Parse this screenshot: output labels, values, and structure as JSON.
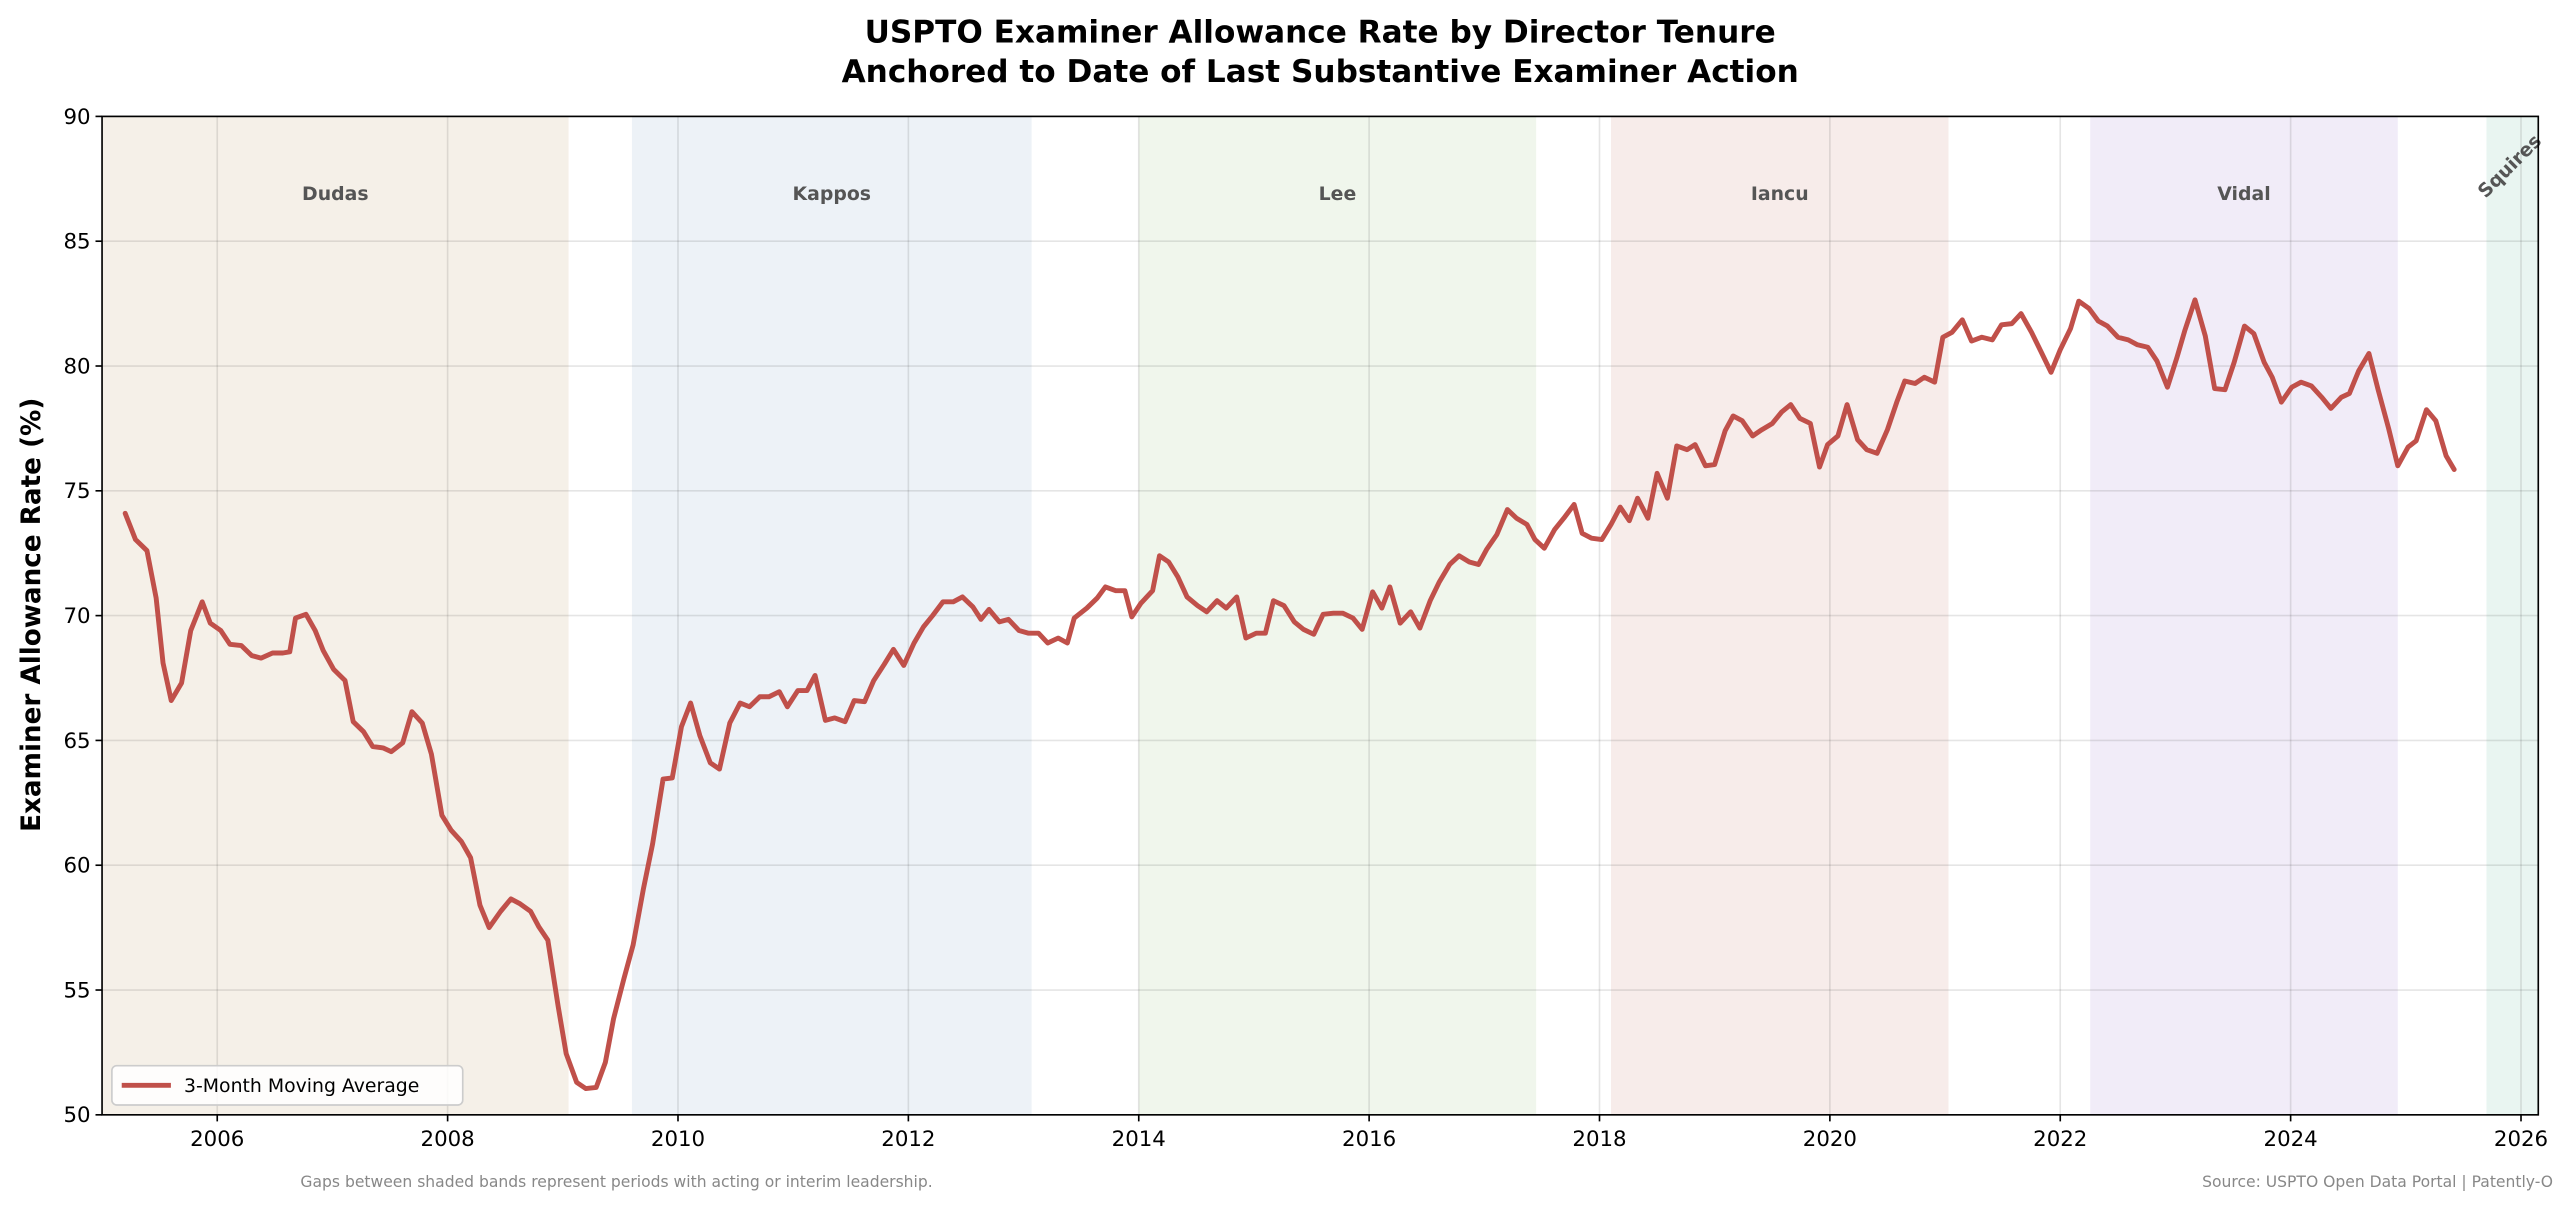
{
  "chart_data": {
    "type": "line",
    "title": "USPTO Examiner Allowance Rate by Director Tenure",
    "subtitle": "Anchored to Date of Last Substantive Examiner Action",
    "xlabel": "",
    "ylabel": "Examiner Allowance Rate (%)",
    "xlim": [
      2005.0,
      2026.15
    ],
    "ylim": [
      50,
      90
    ],
    "xticks": [
      2006,
      2008,
      2010,
      2012,
      2014,
      2016,
      2018,
      2020,
      2022,
      2024,
      2026
    ],
    "yticks": [
      50,
      55,
      60,
      65,
      70,
      75,
      80,
      85,
      90
    ],
    "grid": true,
    "legend_position": "bottom-left",
    "line_color": "#c0504a",
    "bands": [
      {
        "name": "Dudas",
        "start": 2005.0,
        "end": 2009.05,
        "color": "#f5f0e8"
      },
      {
        "name": "Kappos",
        "start": 2009.6,
        "end": 2013.07,
        "color": "#edf2f7"
      },
      {
        "name": "Lee",
        "start": 2014.0,
        "end": 2017.45,
        "color": "#f0f6ec"
      },
      {
        "name": "Iancu",
        "start": 2018.1,
        "end": 2021.03,
        "color": "#f7ecea"
      },
      {
        "name": "Vidal",
        "start": 2022.26,
        "end": 2024.93,
        "color": "#f1ecf8"
      },
      {
        "name": "Squires",
        "start": 2025.7,
        "end": 2026.15,
        "color": "#e9f5f1",
        "rotated": true
      }
    ],
    "series": [
      {
        "name": "3-Month Moving Average",
        "points": [
          [
            2005.2,
            74.1
          ],
          [
            2005.29,
            73.05
          ],
          [
            2005.39,
            72.6
          ],
          [
            2005.47,
            70.7
          ],
          [
            2005.53,
            68.1
          ],
          [
            2005.6,
            66.6
          ],
          [
            2005.69,
            67.3
          ],
          [
            2005.77,
            69.4
          ],
          [
            2005.87,
            70.55
          ],
          [
            2005.94,
            69.7
          ],
          [
            2006.03,
            69.4
          ],
          [
            2006.11,
            68.85
          ],
          [
            2006.21,
            68.8
          ],
          [
            2006.3,
            68.4
          ],
          [
            2006.38,
            68.3
          ],
          [
            2006.48,
            68.5
          ],
          [
            2006.57,
            68.5
          ],
          [
            2006.63,
            68.55
          ],
          [
            2006.68,
            69.9
          ],
          [
            2006.77,
            70.05
          ],
          [
            2006.85,
            69.4
          ],
          [
            2006.92,
            68.6
          ],
          [
            2007.01,
            67.85
          ],
          [
            2007.11,
            67.4
          ],
          [
            2007.18,
            65.75
          ],
          [
            2007.27,
            65.35
          ],
          [
            2007.35,
            64.75
          ],
          [
            2007.44,
            64.7
          ],
          [
            2007.51,
            64.55
          ],
          [
            2007.61,
            64.9
          ],
          [
            2007.69,
            66.15
          ],
          [
            2007.78,
            65.7
          ],
          [
            2007.86,
            64.45
          ],
          [
            2007.95,
            62.0
          ],
          [
            2008.03,
            61.4
          ],
          [
            2008.12,
            60.95
          ],
          [
            2008.2,
            60.3
          ],
          [
            2008.28,
            58.4
          ],
          [
            2008.36,
            57.5
          ],
          [
            2008.46,
            58.15
          ],
          [
            2008.55,
            58.65
          ],
          [
            2008.63,
            58.45
          ],
          [
            2008.72,
            58.15
          ],
          [
            2008.79,
            57.55
          ],
          [
            2008.87,
            57.0
          ],
          [
            2008.96,
            54.35
          ],
          [
            2009.03,
            52.45
          ],
          [
            2009.12,
            51.3
          ],
          [
            2009.2,
            51.05
          ],
          [
            2009.29,
            51.1
          ],
          [
            2009.37,
            52.1
          ],
          [
            2009.44,
            53.85
          ],
          [
            2009.53,
            55.45
          ],
          [
            2009.61,
            56.8
          ],
          [
            2009.7,
            59.05
          ],
          [
            2009.78,
            60.85
          ],
          [
            2009.87,
            63.45
          ],
          [
            2009.95,
            63.5
          ],
          [
            2010.03,
            65.55
          ],
          [
            2010.11,
            66.5
          ],
          [
            2010.19,
            65.2
          ],
          [
            2010.28,
            64.1
          ],
          [
            2010.36,
            63.85
          ],
          [
            2010.45,
            65.7
          ],
          [
            2010.54,
            66.5
          ],
          [
            2010.62,
            66.35
          ],
          [
            2010.71,
            66.75
          ],
          [
            2010.79,
            66.75
          ],
          [
            2010.88,
            66.95
          ],
          [
            2010.95,
            66.35
          ],
          [
            2011.04,
            67.0
          ],
          [
            2011.12,
            67.0
          ],
          [
            2011.19,
            67.6
          ],
          [
            2011.28,
            65.8
          ],
          [
            2011.36,
            65.9
          ],
          [
            2011.45,
            65.75
          ],
          [
            2011.53,
            66.6
          ],
          [
            2011.62,
            66.55
          ],
          [
            2011.7,
            67.4
          ],
          [
            2011.79,
            68.05
          ],
          [
            2011.87,
            68.65
          ],
          [
            2011.96,
            68.0
          ],
          [
            2012.05,
            68.9
          ],
          [
            2012.13,
            69.55
          ],
          [
            2012.21,
            70.0
          ],
          [
            2012.3,
            70.55
          ],
          [
            2012.39,
            70.55
          ],
          [
            2012.47,
            70.75
          ],
          [
            2012.56,
            70.35
          ],
          [
            2012.63,
            69.85
          ],
          [
            2012.7,
            70.25
          ],
          [
            2012.79,
            69.75
          ],
          [
            2012.87,
            69.85
          ],
          [
            2012.96,
            69.4
          ],
          [
            2013.04,
            69.3
          ],
          [
            2013.13,
            69.3
          ],
          [
            2013.21,
            68.9
          ],
          [
            2013.3,
            69.1
          ],
          [
            2013.38,
            68.9
          ],
          [
            2013.44,
            69.9
          ],
          [
            2013.55,
            70.3
          ],
          [
            2013.64,
            70.7
          ],
          [
            2013.71,
            71.15
          ],
          [
            2013.8,
            71.0
          ],
          [
            2013.88,
            71.0
          ],
          [
            2013.94,
            69.95
          ],
          [
            2014.02,
            70.5
          ],
          [
            2014.12,
            71.0
          ],
          [
            2014.18,
            72.4
          ],
          [
            2014.26,
            72.15
          ],
          [
            2014.34,
            71.55
          ],
          [
            2014.42,
            70.75
          ],
          [
            2014.51,
            70.4
          ],
          [
            2014.59,
            70.15
          ],
          [
            2014.68,
            70.6
          ],
          [
            2014.76,
            70.3
          ],
          [
            2014.85,
            70.75
          ],
          [
            2014.93,
            69.1
          ],
          [
            2015.02,
            69.3
          ],
          [
            2015.1,
            69.3
          ],
          [
            2015.17,
            70.6
          ],
          [
            2015.26,
            70.4
          ],
          [
            2015.35,
            69.75
          ],
          [
            2015.43,
            69.45
          ],
          [
            2015.52,
            69.25
          ],
          [
            2015.6,
            70.05
          ],
          [
            2015.69,
            70.1
          ],
          [
            2015.77,
            70.1
          ],
          [
            2015.86,
            69.9
          ],
          [
            2015.94,
            69.45
          ],
          [
            2016.03,
            70.95
          ],
          [
            2016.11,
            70.3
          ],
          [
            2016.18,
            71.15
          ],
          [
            2016.27,
            69.7
          ],
          [
            2016.36,
            70.15
          ],
          [
            2016.44,
            69.5
          ],
          [
            2016.53,
            70.6
          ],
          [
            2016.61,
            71.35
          ],
          [
            2016.7,
            72.05
          ],
          [
            2016.78,
            72.4
          ],
          [
            2016.87,
            72.15
          ],
          [
            2016.95,
            72.05
          ],
          [
            2017.02,
            72.65
          ],
          [
            2017.11,
            73.25
          ],
          [
            2017.2,
            74.25
          ],
          [
            2017.28,
            73.9
          ],
          [
            2017.37,
            73.65
          ],
          [
            2017.44,
            73.05
          ],
          [
            2017.52,
            72.7
          ],
          [
            2017.61,
            73.45
          ],
          [
            2017.69,
            73.9
          ],
          [
            2017.78,
            74.45
          ],
          [
            2017.85,
            73.3
          ],
          [
            2017.93,
            73.1
          ],
          [
            2018.02,
            73.05
          ],
          [
            2018.1,
            73.65
          ],
          [
            2018.18,
            74.35
          ],
          [
            2018.26,
            73.8
          ],
          [
            2018.33,
            74.7
          ],
          [
            2018.42,
            73.9
          ],
          [
            2018.5,
            75.7
          ],
          [
            2018.59,
            74.7
          ],
          [
            2018.67,
            76.8
          ],
          [
            2018.76,
            76.65
          ],
          [
            2018.83,
            76.85
          ],
          [
            2018.92,
            76.0
          ],
          [
            2019.0,
            76.05
          ],
          [
            2019.09,
            77.4
          ],
          [
            2019.16,
            78.0
          ],
          [
            2019.24,
            77.8
          ],
          [
            2019.33,
            77.2
          ],
          [
            2019.41,
            77.45
          ],
          [
            2019.5,
            77.7
          ],
          [
            2019.58,
            78.15
          ],
          [
            2019.66,
            78.45
          ],
          [
            2019.74,
            77.9
          ],
          [
            2019.83,
            77.7
          ],
          [
            2019.91,
            75.95
          ],
          [
            2019.98,
            76.85
          ],
          [
            2020.07,
            77.2
          ],
          [
            2020.15,
            78.45
          ],
          [
            2020.24,
            77.05
          ],
          [
            2020.32,
            76.65
          ],
          [
            2020.41,
            76.5
          ],
          [
            2020.5,
            77.45
          ],
          [
            2020.58,
            78.55
          ],
          [
            2020.65,
            79.4
          ],
          [
            2020.74,
            79.3
          ],
          [
            2020.82,
            79.55
          ],
          [
            2020.91,
            79.35
          ],
          [
            2020.98,
            81.15
          ],
          [
            2021.06,
            81.35
          ],
          [
            2021.15,
            81.85
          ],
          [
            2021.23,
            81.0
          ],
          [
            2021.32,
            81.15
          ],
          [
            2021.41,
            81.05
          ],
          [
            2021.49,
            81.65
          ],
          [
            2021.58,
            81.7
          ],
          [
            2021.66,
            82.1
          ],
          [
            2021.75,
            81.35
          ],
          [
            2021.83,
            80.6
          ],
          [
            2021.92,
            79.75
          ],
          [
            2022.0,
            80.65
          ],
          [
            2022.09,
            81.5
          ],
          [
            2022.16,
            82.6
          ],
          [
            2022.25,
            82.3
          ],
          [
            2022.33,
            81.8
          ],
          [
            2022.41,
            81.6
          ],
          [
            2022.5,
            81.15
          ],
          [
            2022.59,
            81.05
          ],
          [
            2022.67,
            80.85
          ],
          [
            2022.76,
            80.75
          ],
          [
            2022.84,
            80.2
          ],
          [
            2022.93,
            79.15
          ],
          [
            2023.01,
            80.3
          ],
          [
            2023.08,
            81.4
          ],
          [
            2023.17,
            82.65
          ],
          [
            2023.26,
            81.2
          ],
          [
            2023.34,
            79.1
          ],
          [
            2023.43,
            79.05
          ],
          [
            2023.51,
            80.15
          ],
          [
            2023.6,
            81.6
          ],
          [
            2023.68,
            81.3
          ],
          [
            2023.77,
            80.15
          ],
          [
            2023.84,
            79.55
          ],
          [
            2023.92,
            78.55
          ],
          [
            2024.01,
            79.15
          ],
          [
            2024.09,
            79.35
          ],
          [
            2024.18,
            79.2
          ],
          [
            2024.27,
            78.75
          ],
          [
            2024.35,
            78.3
          ],
          [
            2024.44,
            78.75
          ],
          [
            2024.51,
            78.9
          ],
          [
            2024.59,
            79.8
          ],
          [
            2024.68,
            80.5
          ],
          [
            2024.76,
            79.05
          ],
          [
            2024.85,
            77.5
          ],
          [
            2024.93,
            76.0
          ],
          [
            2025.02,
            76.75
          ],
          [
            2025.09,
            77.0
          ],
          [
            2025.18,
            78.25
          ],
          [
            2025.26,
            77.8
          ],
          [
            2025.35,
            76.4
          ],
          [
            2025.42,
            75.85
          ]
        ]
      }
    ],
    "annotations": {
      "note": "Gaps between shaded bands represent periods with acting or interim leadership.",
      "source": "Source: USPTO Open Data Portal | Patently-O"
    }
  }
}
